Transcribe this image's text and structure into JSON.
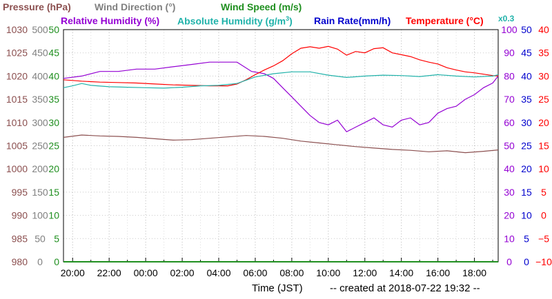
{
  "legend": [
    {
      "key": "pressure",
      "text": "Pressure (hPa)",
      "color": "#8b4f4f"
    },
    {
      "key": "wind_dir",
      "text": "Wind Direction (°)",
      "color": "#808080"
    },
    {
      "key": "wind_speed",
      "text": "Wind Speed (m/s)",
      "color": "#1f8f1f"
    },
    {
      "key": "rel_hum",
      "text": "Relative Humidity (%)",
      "color": "#9400d3"
    },
    {
      "key": "abs_hum",
      "text": "Absolute Humidity (g/m",
      "sup": "3",
      "suffix": ")",
      "color": "#20b2aa"
    },
    {
      "key": "rain",
      "text": "Rain Rate(mm/h)",
      "color": "#0000cd"
    },
    {
      "key": "temp",
      "text": "Temperature (°C)",
      "color": "#ff0000"
    }
  ],
  "abs_hum_scale_note": "x0.3",
  "xlabel": "Time (JST)",
  "created_note": "-- created at 2018-07-22 19:32 --",
  "chart_data": {
    "type": "line",
    "x_ticks": [
      "20:00",
      "22:00",
      "00:00",
      "02:00",
      "04:00",
      "06:00",
      "08:00",
      "10:00",
      "12:00",
      "14:00",
      "16:00",
      "18:00"
    ],
    "x_range_hours": [
      19.5,
      43.3
    ],
    "axes": {
      "pressure": {
        "color": "#8b4f4f",
        "ticks": [
          "980",
          "985",
          "990",
          "995",
          "1000",
          "1005",
          "1010",
          "1015",
          "1020",
          "1025",
          "1030"
        ],
        "ylim": [
          980,
          1030
        ]
      },
      "wind_dir": {
        "color": "#808080",
        "ticks": [
          "0",
          "50",
          "100",
          "150",
          "200",
          "250",
          "300",
          "350",
          "400",
          "450",
          "500"
        ],
        "ylim": [
          0,
          500
        ]
      },
      "wind_speed": {
        "color": "#1f8f1f",
        "ticks": [
          "0",
          "5",
          "10",
          "15",
          "20",
          "25",
          "30",
          "35",
          "40",
          "45",
          "50"
        ],
        "ylim": [
          0,
          50
        ]
      },
      "rel_hum": {
        "color": "#9400d3",
        "ticks": [
          "0",
          "10",
          "20",
          "30",
          "40",
          "50",
          "60",
          "70",
          "80",
          "90",
          "100"
        ],
        "ylim": [
          0,
          100
        ]
      },
      "rain": {
        "color": "#0000cd",
        "ticks": [
          "0",
          "5",
          "10",
          "15",
          "20",
          "25",
          "30",
          "35",
          "40",
          "45",
          "50"
        ],
        "ylim": [
          0,
          50
        ]
      },
      "temp": {
        "color": "#ff0000",
        "ticks": [
          "−10",
          "−5",
          "0",
          "5",
          "10",
          "15",
          "20",
          "25",
          "30",
          "35",
          "40"
        ],
        "ylim": [
          -10,
          40
        ]
      }
    },
    "series": [
      {
        "key": "rel_hum",
        "axis": "rel_hum",
        "color": "#9400d3",
        "x": [
          19.5,
          20.5,
          21.5,
          22.5,
          23.5,
          24.5,
          25.5,
          26.5,
          27.5,
          28.5,
          29.0,
          29.8,
          30.5,
          31.0,
          31.5,
          32.0,
          32.5,
          33.0,
          33.5,
          34.0,
          34.5,
          35.0,
          35.5,
          36.0,
          36.5,
          37.0,
          37.5,
          38.0,
          38.5,
          39.0,
          39.5,
          40.0,
          40.5,
          41.0,
          41.5,
          42.0,
          42.5,
          43.0,
          43.3
        ],
        "y": [
          79,
          80,
          82,
          82,
          83,
          83,
          84,
          85,
          86,
          86,
          86,
          82,
          81,
          79,
          75,
          71,
          67,
          63,
          60,
          59,
          61,
          56,
          58,
          60,
          62,
          59,
          58,
          61,
          62,
          59,
          60,
          64,
          66,
          67,
          70,
          72,
          75,
          77,
          80
        ]
      },
      {
        "key": "temp",
        "axis": "temp",
        "color": "#ff0000",
        "x": [
          19.5,
          20.5,
          21.5,
          22.5,
          23.5,
          24.5,
          25.5,
          26.5,
          27.5,
          28.5,
          29.0,
          29.5,
          30.0,
          30.5,
          31.0,
          31.5,
          32.0,
          32.5,
          33.0,
          33.5,
          34.0,
          34.5,
          35.0,
          35.5,
          36.0,
          36.5,
          37.0,
          37.5,
          38.0,
          38.5,
          39.0,
          39.5,
          40.0,
          40.5,
          41.0,
          41.5,
          42.0,
          42.5,
          43.0,
          43.3
        ],
        "y": [
          29.2,
          28.9,
          28.7,
          28.6,
          28.5,
          28.3,
          28.1,
          28.0,
          27.9,
          27.9,
          28.3,
          29.2,
          30.3,
          31.3,
          32.2,
          33.3,
          34.8,
          36.0,
          36.3,
          36.0,
          36.4,
          35.8,
          34.5,
          35.3,
          35.0,
          35.9,
          36.1,
          35.0,
          34.6,
          34.2,
          33.5,
          33.0,
          32.6,
          31.8,
          31.3,
          30.9,
          30.7,
          30.4,
          30.1,
          30.0
        ]
      },
      {
        "key": "abs_hum",
        "axis": "temp",
        "color": "#20b2aa",
        "x": [
          19.5,
          20.0,
          20.5,
          21.0,
          22.0,
          23.0,
          24.0,
          25.0,
          26.0,
          27.0,
          28.0,
          29.0,
          30.0,
          31.0,
          32.0,
          33.0,
          34.0,
          35.0,
          36.0,
          37.0,
          38.0,
          39.0,
          40.0,
          41.0,
          42.0,
          43.0,
          43.3
        ],
        "y": [
          27.5,
          27.9,
          28.4,
          28.0,
          27.7,
          27.6,
          27.5,
          27.4,
          27.6,
          27.9,
          28.0,
          28.4,
          29.8,
          30.5,
          30.9,
          30.9,
          30.2,
          29.7,
          30.0,
          30.2,
          30.1,
          29.9,
          30.3,
          30.0,
          29.8,
          30.0,
          30.3
        ]
      },
      {
        "key": "pressure",
        "axis": "pressure",
        "color": "#8b4f4f",
        "x": [
          19.5,
          20.5,
          21.5,
          22.5,
          23.5,
          24.5,
          25.5,
          26.5,
          27.5,
          28.5,
          29.5,
          30.5,
          31.5,
          32.5,
          33.5,
          34.5,
          35.5,
          36.5,
          37.5,
          38.5,
          39.5,
          40.5,
          41.5,
          42.5,
          43.3
        ],
        "y": [
          1006.8,
          1007.3,
          1007.1,
          1007.0,
          1006.8,
          1006.5,
          1006.2,
          1006.3,
          1006.6,
          1006.9,
          1007.2,
          1007.0,
          1006.6,
          1006.0,
          1005.6,
          1005.2,
          1004.8,
          1004.5,
          1004.2,
          1004.0,
          1003.7,
          1003.9,
          1003.5,
          1003.8,
          1004.1
        ]
      },
      {
        "key": "wind_speed",
        "axis": "wind_speed",
        "color": "#1f8f1f",
        "x": [
          19.5,
          43.3
        ],
        "y": [
          0,
          0
        ]
      }
    ],
    "grid": true
  }
}
